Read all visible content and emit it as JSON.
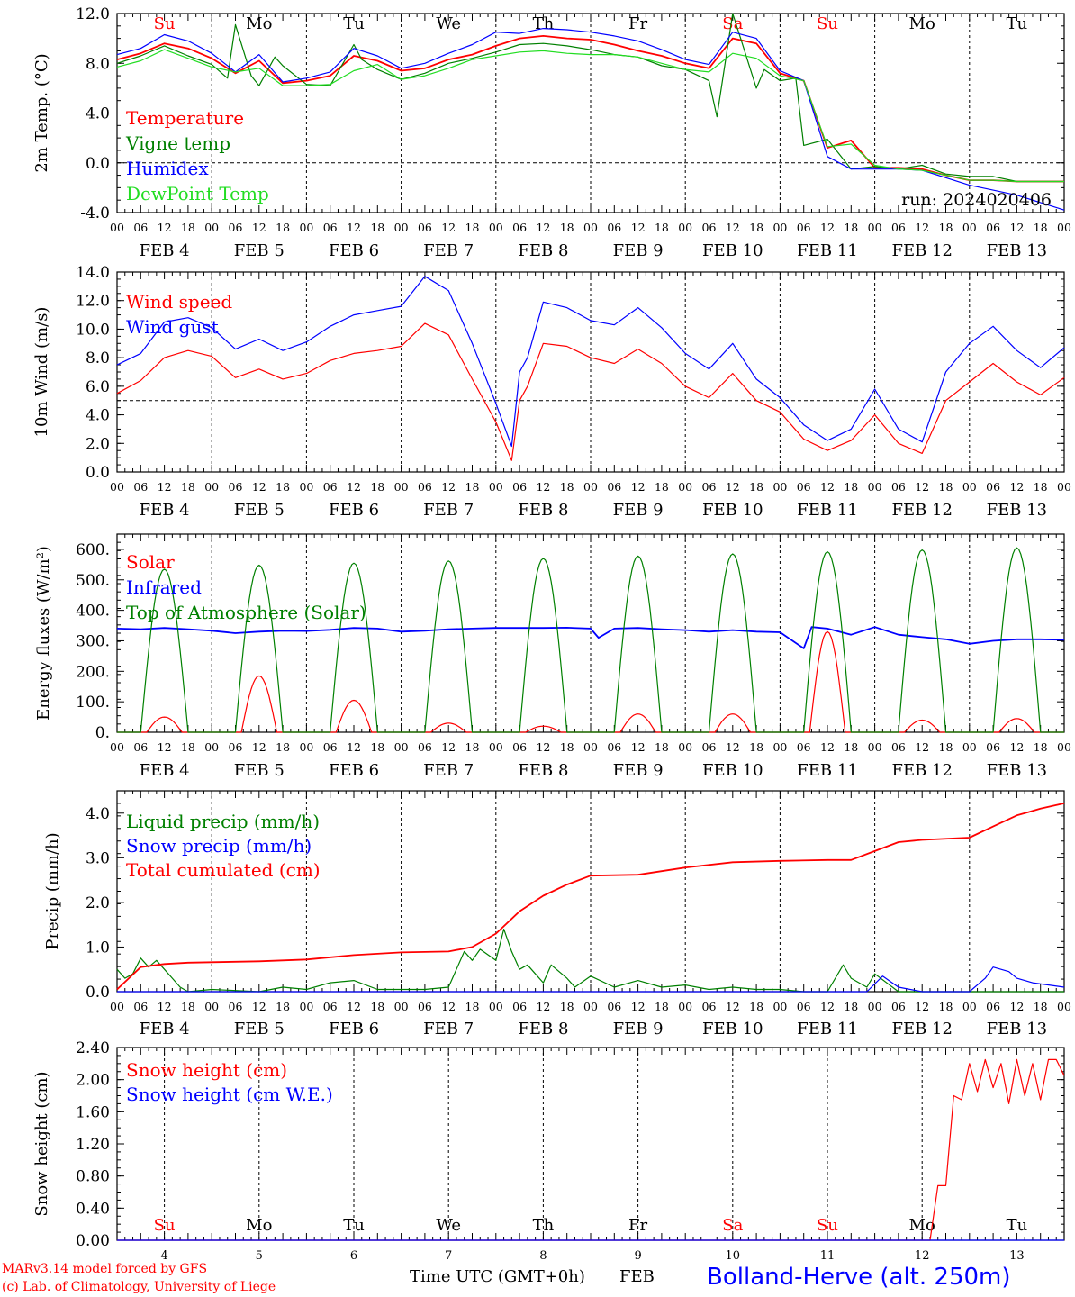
{
  "footer": {
    "credit1": "MARv3.14 model forced by GFS",
    "credit2": "(c) Lab. of Climatology, University of Liege",
    "xaxis_title": "Time UTC (GMT+0h)",
    "month": "FEB",
    "station": "Bolland-Herve (alt. 250m)"
  },
  "colors": {
    "red": "#ff0000",
    "green": "#008000",
    "blue": "#0000ff",
    "lightgreen": "#22dd22"
  },
  "days": [
    "4",
    "5",
    "6",
    "7",
    "8",
    "9",
    "10",
    "11",
    "12",
    "13"
  ],
  "day_labels": [
    "FEB  4",
    "FEB  5",
    "FEB  6",
    "FEB  7",
    "FEB  8",
    "FEB  9",
    "FEB 10",
    "FEB 11",
    "FEB 12",
    "FEB 13"
  ],
  "hour_ticks": [
    "00",
    "06",
    "12",
    "18"
  ],
  "weekdays": [
    {
      "label": "Su",
      "color": "#ff0000"
    },
    {
      "label": "Mo",
      "color": "#000000"
    },
    {
      "label": "Tu",
      "color": "#000000"
    },
    {
      "label": "We",
      "color": "#000000"
    },
    {
      "label": "Th",
      "color": "#000000"
    },
    {
      "label": "Fr",
      "color": "#000000"
    },
    {
      "label": "Sa",
      "color": "#ff0000"
    },
    {
      "label": "Su",
      "color": "#ff0000"
    },
    {
      "label": "Mo",
      "color": "#000000"
    },
    {
      "label": "Tu",
      "color": "#000000"
    }
  ],
  "chart_data": [
    {
      "type": "line",
      "ylabel": "2m Temp. (°C)",
      "ylim": [
        -4,
        12
      ],
      "yticks": [
        "-4.0",
        "0.0",
        "4.0",
        "8.0",
        "12.0"
      ],
      "ref_line": 0,
      "annotation": "run: 2024020406",
      "x_unit": "hours since FEB 4 00 UTC",
      "series": [
        {
          "name": "Temperature",
          "color": "#ff0000",
          "x": [
            0,
            6,
            12,
            18,
            24,
            30,
            36,
            42,
            48,
            54,
            60,
            66,
            72,
            78,
            84,
            90,
            96,
            102,
            108,
            114,
            120,
            126,
            132,
            138,
            144,
            150,
            156,
            162,
            168,
            174,
            180,
            186,
            192,
            198,
            204,
            210,
            216,
            222,
            228,
            234,
            240
          ],
          "values": [
            8.3,
            8.8,
            9.6,
            9.2,
            8.4,
            7.2,
            8.2,
            6.4,
            6.6,
            7.0,
            8.6,
            8.2,
            7.4,
            7.6,
            8.3,
            8.7,
            9.4,
            10.0,
            10.2,
            10.0,
            9.9,
            9.5,
            9.0,
            8.6,
            8.0,
            7.6,
            10.0,
            9.6,
            7.2,
            6.6,
            1.2,
            1.8,
            -0.4,
            -0.4,
            -0.5,
            -1.0,
            -1.4,
            -1.4,
            -1.5,
            -1.5,
            -1.5
          ]
        },
        {
          "name": "Vigne temp",
          "color": "#008000",
          "x": [
            0,
            6,
            12,
            18,
            24,
            28,
            30,
            34,
            36,
            40,
            42,
            48,
            54,
            60,
            62,
            66,
            72,
            78,
            84,
            90,
            96,
            102,
            108,
            114,
            120,
            126,
            132,
            138,
            144,
            150,
            152,
            156,
            158,
            162,
            164,
            168,
            172,
            174,
            180,
            186,
            192,
            198,
            204,
            210,
            216,
            222,
            228,
            234,
            240
          ],
          "values": [
            8.0,
            8.6,
            9.4,
            8.6,
            7.9,
            6.8,
            11.1,
            7.0,
            6.2,
            8.5,
            7.8,
            6.3,
            6.2,
            9.5,
            8.3,
            7.5,
            6.7,
            7.2,
            8.0,
            8.4,
            8.9,
            9.5,
            9.6,
            9.4,
            9.1,
            8.7,
            8.5,
            7.8,
            7.5,
            6.6,
            3.7,
            12.2,
            10.0,
            6.0,
            7.5,
            6.6,
            6.8,
            1.4,
            1.9,
            -0.5,
            -0.3,
            -0.5,
            -0.2,
            -0.9,
            -1.1,
            -1.1,
            -1.5,
            -1.5,
            -1.5
          ]
        },
        {
          "name": "Humidex",
          "color": "#0000ff",
          "x": [
            0,
            6,
            12,
            18,
            24,
            30,
            36,
            42,
            48,
            54,
            60,
            66,
            72,
            78,
            84,
            90,
            96,
            102,
            108,
            114,
            120,
            126,
            132,
            138,
            144,
            150,
            156,
            162,
            168,
            174,
            180,
            186,
            192,
            198,
            204,
            210,
            216,
            222,
            228,
            234,
            240
          ],
          "values": [
            8.7,
            9.2,
            10.3,
            9.8,
            8.8,
            7.3,
            8.7,
            6.5,
            6.8,
            7.3,
            9.2,
            8.6,
            7.6,
            8.0,
            8.8,
            9.5,
            10.5,
            10.4,
            10.8,
            10.7,
            10.5,
            10.2,
            9.8,
            9.1,
            8.3,
            7.9,
            10.5,
            10.0,
            7.4,
            6.6,
            0.5,
            -0.5,
            -0.5,
            -0.5,
            -0.6,
            -1.2,
            -1.8,
            -2.2,
            -2.6,
            -3.2,
            -3.8
          ]
        },
        {
          "name": "DewPoint Temp",
          "color": "#22dd22",
          "x": [
            0,
            6,
            12,
            18,
            24,
            30,
            36,
            42,
            48,
            54,
            60,
            66,
            72,
            78,
            84,
            90,
            96,
            102,
            108,
            114,
            120,
            126,
            132,
            138,
            144,
            150,
            156,
            162,
            168,
            174,
            180,
            186,
            192,
            198,
            204,
            210,
            216,
            222,
            228,
            234,
            240
          ],
          "values": [
            7.7,
            8.2,
            9.1,
            8.4,
            7.7,
            7.3,
            7.6,
            6.2,
            6.2,
            6.3,
            7.4,
            7.9,
            6.7,
            7.0,
            7.6,
            8.3,
            8.6,
            8.9,
            9.0,
            8.8,
            8.7,
            8.7,
            8.5,
            8.0,
            7.5,
            7.3,
            8.8,
            8.4,
            7.0,
            6.6,
            1.3,
            1.5,
            -0.2,
            -0.5,
            -0.6,
            -1.0,
            -1.4,
            -1.4,
            -1.5,
            -1.5,
            -1.5
          ]
        }
      ]
    },
    {
      "type": "line",
      "ylabel": "10m Wind (m/s)",
      "ylim": [
        0,
        14
      ],
      "yticks": [
        "0.0",
        "2.0",
        "4.0",
        "6.0",
        "8.0",
        "10.0",
        "12.0",
        "14.0"
      ],
      "ref_line": 5,
      "x_unit": "hours since FEB 4 00 UTC",
      "series": [
        {
          "name": "Wind speed",
          "color": "#ff0000",
          "x": [
            0,
            6,
            12,
            18,
            24,
            30,
            36,
            42,
            48,
            54,
            60,
            66,
            72,
            78,
            84,
            90,
            96,
            100,
            102,
            104,
            108,
            114,
            120,
            126,
            132,
            138,
            144,
            150,
            156,
            162,
            168,
            174,
            180,
            186,
            192,
            198,
            204,
            210,
            216,
            222,
            228,
            234,
            240
          ],
          "values": [
            5.5,
            6.4,
            8.0,
            8.5,
            8.1,
            6.6,
            7.2,
            6.5,
            6.9,
            7.8,
            8.3,
            8.5,
            8.8,
            10.4,
            9.6,
            6.5,
            3.5,
            0.8,
            5.0,
            6.0,
            9.0,
            8.8,
            8.0,
            7.6,
            8.6,
            7.6,
            6.0,
            5.2,
            6.9,
            5.0,
            4.2,
            2.3,
            1.5,
            2.2,
            4.0,
            2.0,
            1.3,
            5.0,
            6.3,
            7.6,
            6.3,
            5.4,
            6.6
          ]
        },
        {
          "name": "Wind gust",
          "color": "#0000ff",
          "x": [
            0,
            6,
            12,
            18,
            24,
            30,
            36,
            42,
            48,
            54,
            60,
            66,
            72,
            78,
            84,
            90,
            96,
            100,
            102,
            104,
            108,
            114,
            120,
            126,
            132,
            138,
            144,
            150,
            156,
            162,
            168,
            174,
            180,
            186,
            192,
            198,
            204,
            210,
            216,
            222,
            228,
            234,
            240
          ],
          "values": [
            7.5,
            8.3,
            10.5,
            10.8,
            10.1,
            8.6,
            9.3,
            8.5,
            9.1,
            10.2,
            11.0,
            11.3,
            11.6,
            13.7,
            12.7,
            9.0,
            4.8,
            1.8,
            7.0,
            8.0,
            11.9,
            11.5,
            10.6,
            10.3,
            11.5,
            10.1,
            8.3,
            7.2,
            9.0,
            6.5,
            5.2,
            3.3,
            2.2,
            3.0,
            5.8,
            3.0,
            2.1,
            7.0,
            9.0,
            10.2,
            8.5,
            7.3,
            8.7
          ]
        }
      ]
    },
    {
      "type": "line",
      "ylabel": "Energy fluxes (W/m²)",
      "ylim": [
        0,
        650
      ],
      "yticks": [
        "0.",
        "100.",
        "200.",
        "300.",
        "400.",
        "500.",
        "600."
      ],
      "x_unit": "hours since FEB 4 00 UTC",
      "series": [
        {
          "name": "Solar",
          "color": "#ff0000",
          "day_peaks": [
            50,
            185,
            105,
            30,
            20,
            60,
            60,
            330,
            40,
            45
          ]
        },
        {
          "name": "Infrared",
          "color": "#0000ff",
          "x": [
            0,
            6,
            12,
            18,
            24,
            30,
            36,
            42,
            48,
            54,
            60,
            66,
            72,
            78,
            84,
            90,
            96,
            102,
            108,
            114,
            120,
            122,
            126,
            132,
            138,
            144,
            150,
            156,
            162,
            168,
            174,
            176,
            180,
            186,
            192,
            198,
            204,
            210,
            216,
            222,
            228,
            234,
            240
          ],
          "values": [
            340,
            338,
            342,
            338,
            333,
            325,
            330,
            333,
            332,
            336,
            342,
            340,
            330,
            333,
            338,
            340,
            342,
            342,
            342,
            343,
            340,
            310,
            340,
            342,
            338,
            335,
            330,
            335,
            330,
            328,
            275,
            345,
            340,
            320,
            345,
            320,
            312,
            305,
            290,
            300,
            305,
            305,
            303
          ]
        },
        {
          "name": "Top of Atmosphere (Solar)",
          "color": "#008000",
          "day_peaks": [
            535,
            548,
            555,
            562,
            570,
            578,
            585,
            592,
            598,
            605
          ]
        }
      ]
    },
    {
      "type": "line",
      "ylabel": "Precip (mm/h)",
      "ylim": [
        0,
        4.5
      ],
      "yticks": [
        "0.0",
        "1.0",
        "2.0",
        "3.0",
        "4.0"
      ],
      "x_unit": "hours since FEB 4 00 UTC",
      "series": [
        {
          "name": "Liquid precip (mm/h)",
          "color": "#008000",
          "x": [
            0,
            2,
            4,
            6,
            8,
            10,
            12,
            14,
            16,
            18,
            24,
            36,
            42,
            48,
            54,
            60,
            66,
            72,
            78,
            84,
            88,
            90,
            92,
            96,
            98,
            100,
            102,
            104,
            106,
            108,
            110,
            114,
            116,
            120,
            126,
            132,
            138,
            144,
            150,
            156,
            162,
            168,
            174,
            180,
            184,
            186,
            188,
            190,
            192,
            198,
            204,
            210,
            216,
            240
          ],
          "values": [
            0.5,
            0.3,
            0.4,
            0.75,
            0.55,
            0.7,
            0.5,
            0.3,
            0.1,
            0,
            0.05,
            0,
            0.1,
            0.05,
            0.2,
            0.25,
            0.05,
            0.05,
            0.05,
            0.1,
            0.9,
            0.7,
            0.95,
            0.7,
            1.4,
            0.9,
            0.5,
            0.6,
            0.4,
            0.2,
            0.6,
            0.3,
            0.1,
            0.35,
            0.1,
            0.25,
            0.1,
            0.15,
            0.05,
            0.1,
            0.05,
            0.05,
            0,
            0,
            0.6,
            0.3,
            0.2,
            0.1,
            0.4,
            0,
            0,
            0,
            0,
            0
          ]
        },
        {
          "name": "Snow precip (mm/h)",
          "color": "#0000ff",
          "x": [
            0,
            186,
            190,
            194,
            198,
            204,
            216,
            220,
            222,
            226,
            228,
            232,
            240
          ],
          "values": [
            0,
            0,
            0,
            0.35,
            0.1,
            0,
            0,
            0.3,
            0.55,
            0.45,
            0.3,
            0.2,
            0.1
          ]
        },
        {
          "name": "Total cumulated (cm)",
          "color": "#ff0000",
          "x": [
            0,
            6,
            12,
            18,
            24,
            36,
            48,
            60,
            72,
            84,
            90,
            96,
            102,
            108,
            114,
            120,
            132,
            144,
            156,
            168,
            180,
            186,
            192,
            198,
            204,
            216,
            222,
            228,
            234,
            240
          ],
          "values": [
            0.05,
            0.55,
            0.62,
            0.65,
            0.66,
            0.68,
            0.72,
            0.82,
            0.88,
            0.9,
            1.0,
            1.3,
            1.8,
            2.15,
            2.4,
            2.6,
            2.62,
            2.78,
            2.9,
            2.93,
            2.95,
            2.95,
            3.15,
            3.35,
            3.4,
            3.45,
            3.7,
            3.95,
            4.1,
            4.22
          ]
        }
      ]
    },
    {
      "type": "line",
      "ylabel": "Snow height (cm)",
      "ylim": [
        0,
        2.4
      ],
      "yticks": [
        "0.00",
        "0.40",
        "0.80",
        "1.20",
        "1.60",
        "2.00",
        "2.40"
      ],
      "x_unit": "hours since FEB 4 00 UTC",
      "series": [
        {
          "name": "Snow height (cm)",
          "color": "#ff0000",
          "x": [
            0,
            206,
            208,
            210,
            212,
            214,
            216,
            218,
            220,
            222,
            224,
            226,
            228,
            230,
            232,
            234,
            236,
            238,
            240
          ],
          "values": [
            0,
            0,
            0.68,
            0.68,
            1.8,
            1.75,
            2.2,
            1.85,
            2.25,
            1.9,
            2.2,
            1.7,
            2.25,
            1.8,
            2.2,
            1.75,
            2.25,
            2.25,
            2.05
          ]
        },
        {
          "name": "Snow height (cm W.E.)",
          "color": "#0000ff",
          "x": [
            0,
            240
          ],
          "values": [
            0,
            0
          ]
        }
      ]
    }
  ]
}
